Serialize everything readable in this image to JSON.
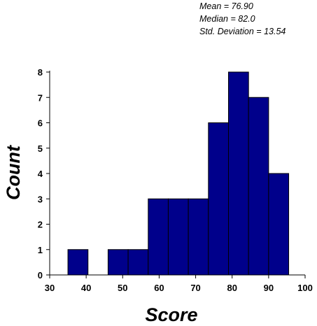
{
  "stats": {
    "mean": "Mean = 76.90",
    "median": "Median = 82.0",
    "std": "Std. Deviation = 13.54"
  },
  "chart_data": {
    "type": "bar",
    "subtype": "histogram",
    "xlabel": "Score",
    "ylabel": "Count",
    "xlim": [
      30,
      100
    ],
    "ylim": [
      0,
      8
    ],
    "x_ticks": [
      30,
      40,
      50,
      60,
      70,
      80,
      90,
      100
    ],
    "y_ticks": [
      0,
      1,
      2,
      3,
      4,
      5,
      6,
      7,
      8
    ],
    "bins": [
      {
        "start": 35.0,
        "end": 40.5,
        "count": 1
      },
      {
        "start": 40.5,
        "end": 46.0,
        "count": 0
      },
      {
        "start": 46.0,
        "end": 51.5,
        "count": 1
      },
      {
        "start": 51.5,
        "end": 57.0,
        "count": 1
      },
      {
        "start": 57.0,
        "end": 62.5,
        "count": 3
      },
      {
        "start": 62.5,
        "end": 68.0,
        "count": 3
      },
      {
        "start": 68.0,
        "end": 73.5,
        "count": 3
      },
      {
        "start": 73.5,
        "end": 79.0,
        "count": 6
      },
      {
        "start": 79.0,
        "end": 84.5,
        "count": 8
      },
      {
        "start": 84.5,
        "end": 90.0,
        "count": 7
      },
      {
        "start": 90.0,
        "end": 95.5,
        "count": 4
      }
    ],
    "bar_color": "#00008B",
    "grid": false
  }
}
